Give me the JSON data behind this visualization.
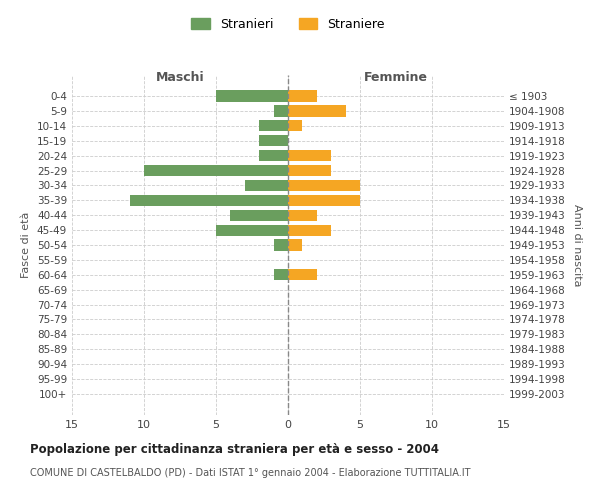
{
  "age_groups": [
    "0-4",
    "5-9",
    "10-14",
    "15-19",
    "20-24",
    "25-29",
    "30-34",
    "35-39",
    "40-44",
    "45-49",
    "50-54",
    "55-59",
    "60-64",
    "65-69",
    "70-74",
    "75-79",
    "80-84",
    "85-89",
    "90-94",
    "95-99",
    "100+"
  ],
  "birth_years": [
    "1999-2003",
    "1994-1998",
    "1989-1993",
    "1984-1988",
    "1979-1983",
    "1974-1978",
    "1969-1973",
    "1964-1968",
    "1959-1963",
    "1954-1958",
    "1949-1953",
    "1944-1948",
    "1939-1943",
    "1934-1938",
    "1929-1933",
    "1924-1928",
    "1919-1923",
    "1914-1918",
    "1909-1913",
    "1904-1908",
    "≤ 1903"
  ],
  "males": [
    5,
    1,
    2,
    2,
    2,
    10,
    3,
    11,
    4,
    5,
    1,
    0,
    1,
    0,
    0,
    0,
    0,
    0,
    0,
    0,
    0
  ],
  "females": [
    2,
    4,
    1,
    0,
    3,
    3,
    5,
    5,
    2,
    3,
    1,
    0,
    2,
    0,
    0,
    0,
    0,
    0,
    0,
    0,
    0
  ],
  "male_color": "#6a9e5e",
  "female_color": "#f5a623",
  "title": "Popolazione per cittadinanza straniera per età e sesso - 2004",
  "subtitle": "COMUNE DI CASTELBALDO (PD) - Dati ISTAT 1° gennaio 2004 - Elaborazione TUTTITALIA.IT",
  "xlabel_left": "Maschi",
  "xlabel_right": "Femmine",
  "ylabel_left": "Fasce di età",
  "ylabel_right": "Anni di nascita",
  "legend_male": "Stranieri",
  "legend_female": "Straniere",
  "xlim": 15,
  "background_color": "#ffffff",
  "grid_color": "#cccccc"
}
